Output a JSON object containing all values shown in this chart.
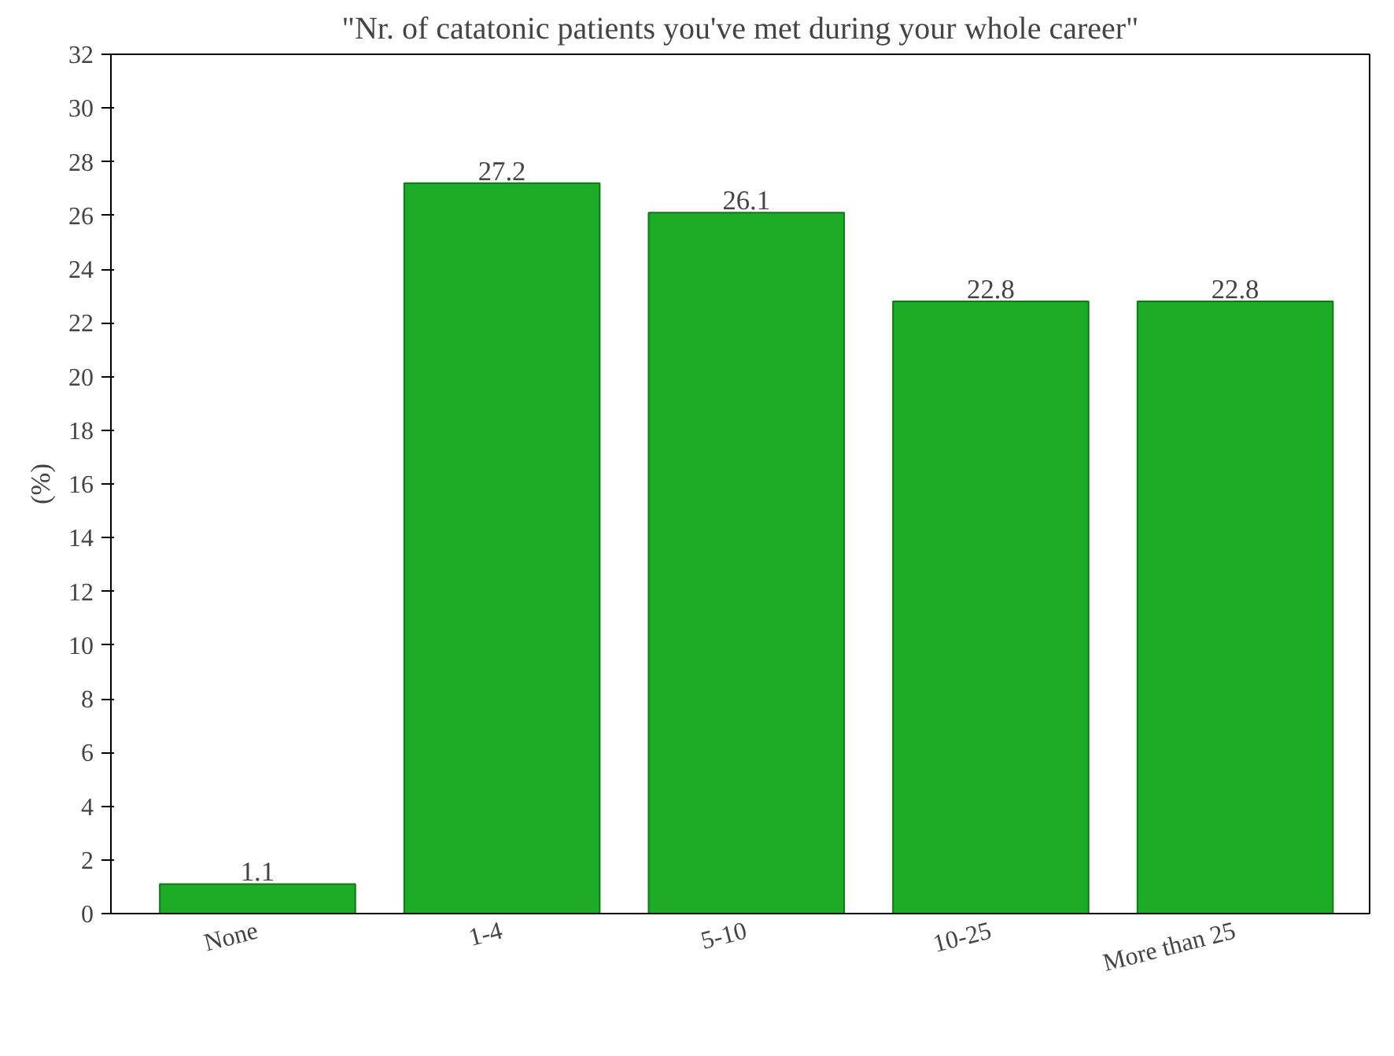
{
  "chart_data": {
    "type": "bar",
    "title": "\"Nr. of catatonic patients you've met during your whole career\"",
    "ylabel": "(%)",
    "categories": [
      "None",
      "1-4",
      "5-10",
      "10-25",
      "More than 25"
    ],
    "values": [
      1.1,
      27.2,
      26.1,
      22.8,
      22.8
    ],
    "color": "#1cac28",
    "ylim": [
      0,
      32
    ],
    "yticks": [
      0,
      2,
      4,
      6,
      8,
      10,
      12,
      14,
      16,
      18,
      20,
      22,
      24,
      26,
      28,
      30,
      32
    ],
    "data_labels": true,
    "grid": false
  }
}
